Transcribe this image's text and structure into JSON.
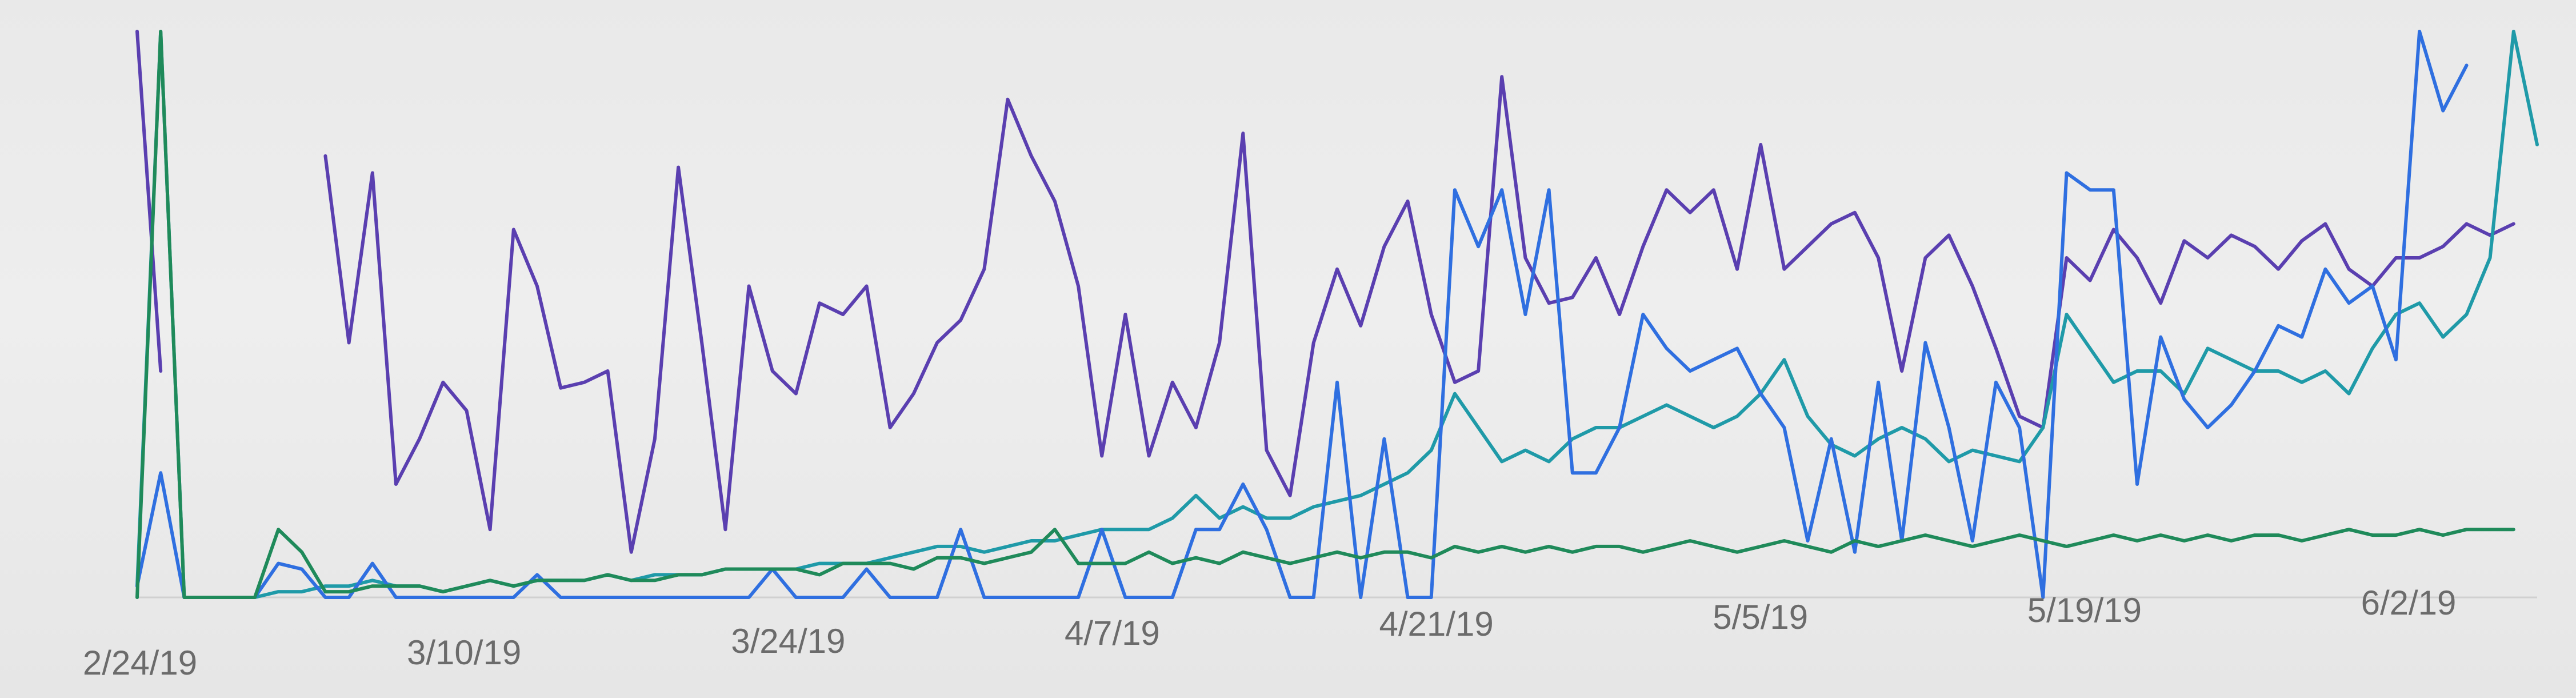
{
  "chart_data": {
    "type": "line",
    "title": "",
    "xlabel": "",
    "ylabel": "",
    "x_tick_labels": [
      "2/24/19",
      "3/10/19",
      "3/24/19",
      "4/7/19",
      "4/21/19",
      "5/5/19",
      "5/19/19",
      "6/2/19"
    ],
    "grid": false,
    "legend": "none",
    "ylim": [
      0,
      100
    ],
    "series": [
      {
        "color": "#5a3fb0",
        "values": [
          100,
          40,
          null,
          null,
          null,
          null,
          null,
          null,
          78,
          45,
          75,
          20,
          28,
          38,
          33,
          12,
          65,
          55,
          37,
          38,
          40,
          8,
          28,
          76,
          45,
          12,
          55,
          40,
          36,
          52,
          50,
          55,
          30,
          36,
          45,
          49,
          58,
          88,
          78,
          70,
          55,
          25,
          50,
          25,
          38,
          30,
          45,
          82,
          26,
          18,
          45,
          58,
          48,
          62,
          70,
          50,
          38,
          40,
          92,
          60,
          52,
          53,
          60,
          50,
          62,
          72,
          68,
          72,
          58,
          80,
          58,
          62,
          66,
          68,
          60,
          40,
          60,
          64,
          55,
          44,
          32,
          30,
          60,
          56,
          65,
          60,
          52,
          63,
          60,
          64,
          62,
          58,
          63,
          66,
          58,
          55,
          60,
          60,
          62,
          66,
          64,
          66
        ]
      },
      {
        "color": "#1f9aa8",
        "values": [
          2,
          100,
          0,
          0,
          0,
          0,
          1,
          1,
          2,
          2,
          3,
          2,
          2,
          1,
          2,
          3,
          2,
          3,
          3,
          3,
          4,
          3,
          4,
          4,
          4,
          5,
          5,
          5,
          5,
          6,
          6,
          6,
          7,
          8,
          9,
          9,
          8,
          9,
          10,
          10,
          11,
          12,
          12,
          12,
          14,
          18,
          14,
          16,
          14,
          14,
          16,
          17,
          18,
          20,
          22,
          26,
          36,
          30,
          24,
          26,
          24,
          28,
          30,
          30,
          32,
          34,
          32,
          30,
          32,
          36,
          42,
          32,
          27,
          25,
          28,
          30,
          28,
          24,
          26,
          25,
          24,
          30,
          50,
          44,
          38,
          40,
          40,
          36,
          44,
          42,
          40,
          40,
          38,
          40,
          36,
          44,
          50,
          52,
          46,
          50,
          60,
          100,
          80
        ]
      },
      {
        "color": "#2f6fe0",
        "values": [
          2,
          22,
          0,
          0,
          0,
          0,
          6,
          5,
          0,
          0,
          6,
          0,
          0,
          0,
          0,
          0,
          0,
          4,
          0,
          0,
          0,
          0,
          0,
          0,
          0,
          0,
          0,
          5,
          0,
          0,
          0,
          5,
          0,
          0,
          0,
          12,
          0,
          0,
          0,
          0,
          0,
          12,
          0,
          0,
          0,
          12,
          12,
          20,
          12,
          0,
          0,
          38,
          0,
          28,
          0,
          0,
          72,
          62,
          72,
          50,
          72,
          22,
          22,
          30,
          50,
          44,
          40,
          42,
          44,
          36,
          30,
          10,
          28,
          8,
          38,
          10,
          45,
          30,
          10,
          38,
          30,
          0,
          75,
          72,
          72,
          20,
          46,
          35,
          30,
          34,
          40,
          48,
          46,
          58,
          52,
          55,
          42,
          100,
          86,
          94
        ]
      },
      {
        "color": "#1f8a5a",
        "values": [
          0,
          100,
          0,
          0,
          0,
          0,
          12,
          8,
          1,
          1,
          2,
          2,
          2,
          1,
          2,
          3,
          2,
          3,
          3,
          3,
          4,
          3,
          3,
          4,
          4,
          5,
          5,
          5,
          5,
          4,
          6,
          6,
          6,
          5,
          7,
          7,
          6,
          7,
          8,
          12,
          6,
          6,
          6,
          8,
          6,
          7,
          6,
          8,
          7,
          6,
          7,
          8,
          7,
          8,
          8,
          7,
          9,
          8,
          9,
          8,
          9,
          8,
          9,
          9,
          8,
          9,
          10,
          9,
          8,
          9,
          10,
          9,
          8,
          10,
          9,
          10,
          11,
          10,
          9,
          10,
          11,
          10,
          9,
          10,
          11,
          10,
          11,
          10,
          11,
          10,
          11,
          11,
          10,
          11,
          12,
          11,
          11,
          12,
          11,
          12,
          12,
          12
        ]
      }
    ]
  }
}
